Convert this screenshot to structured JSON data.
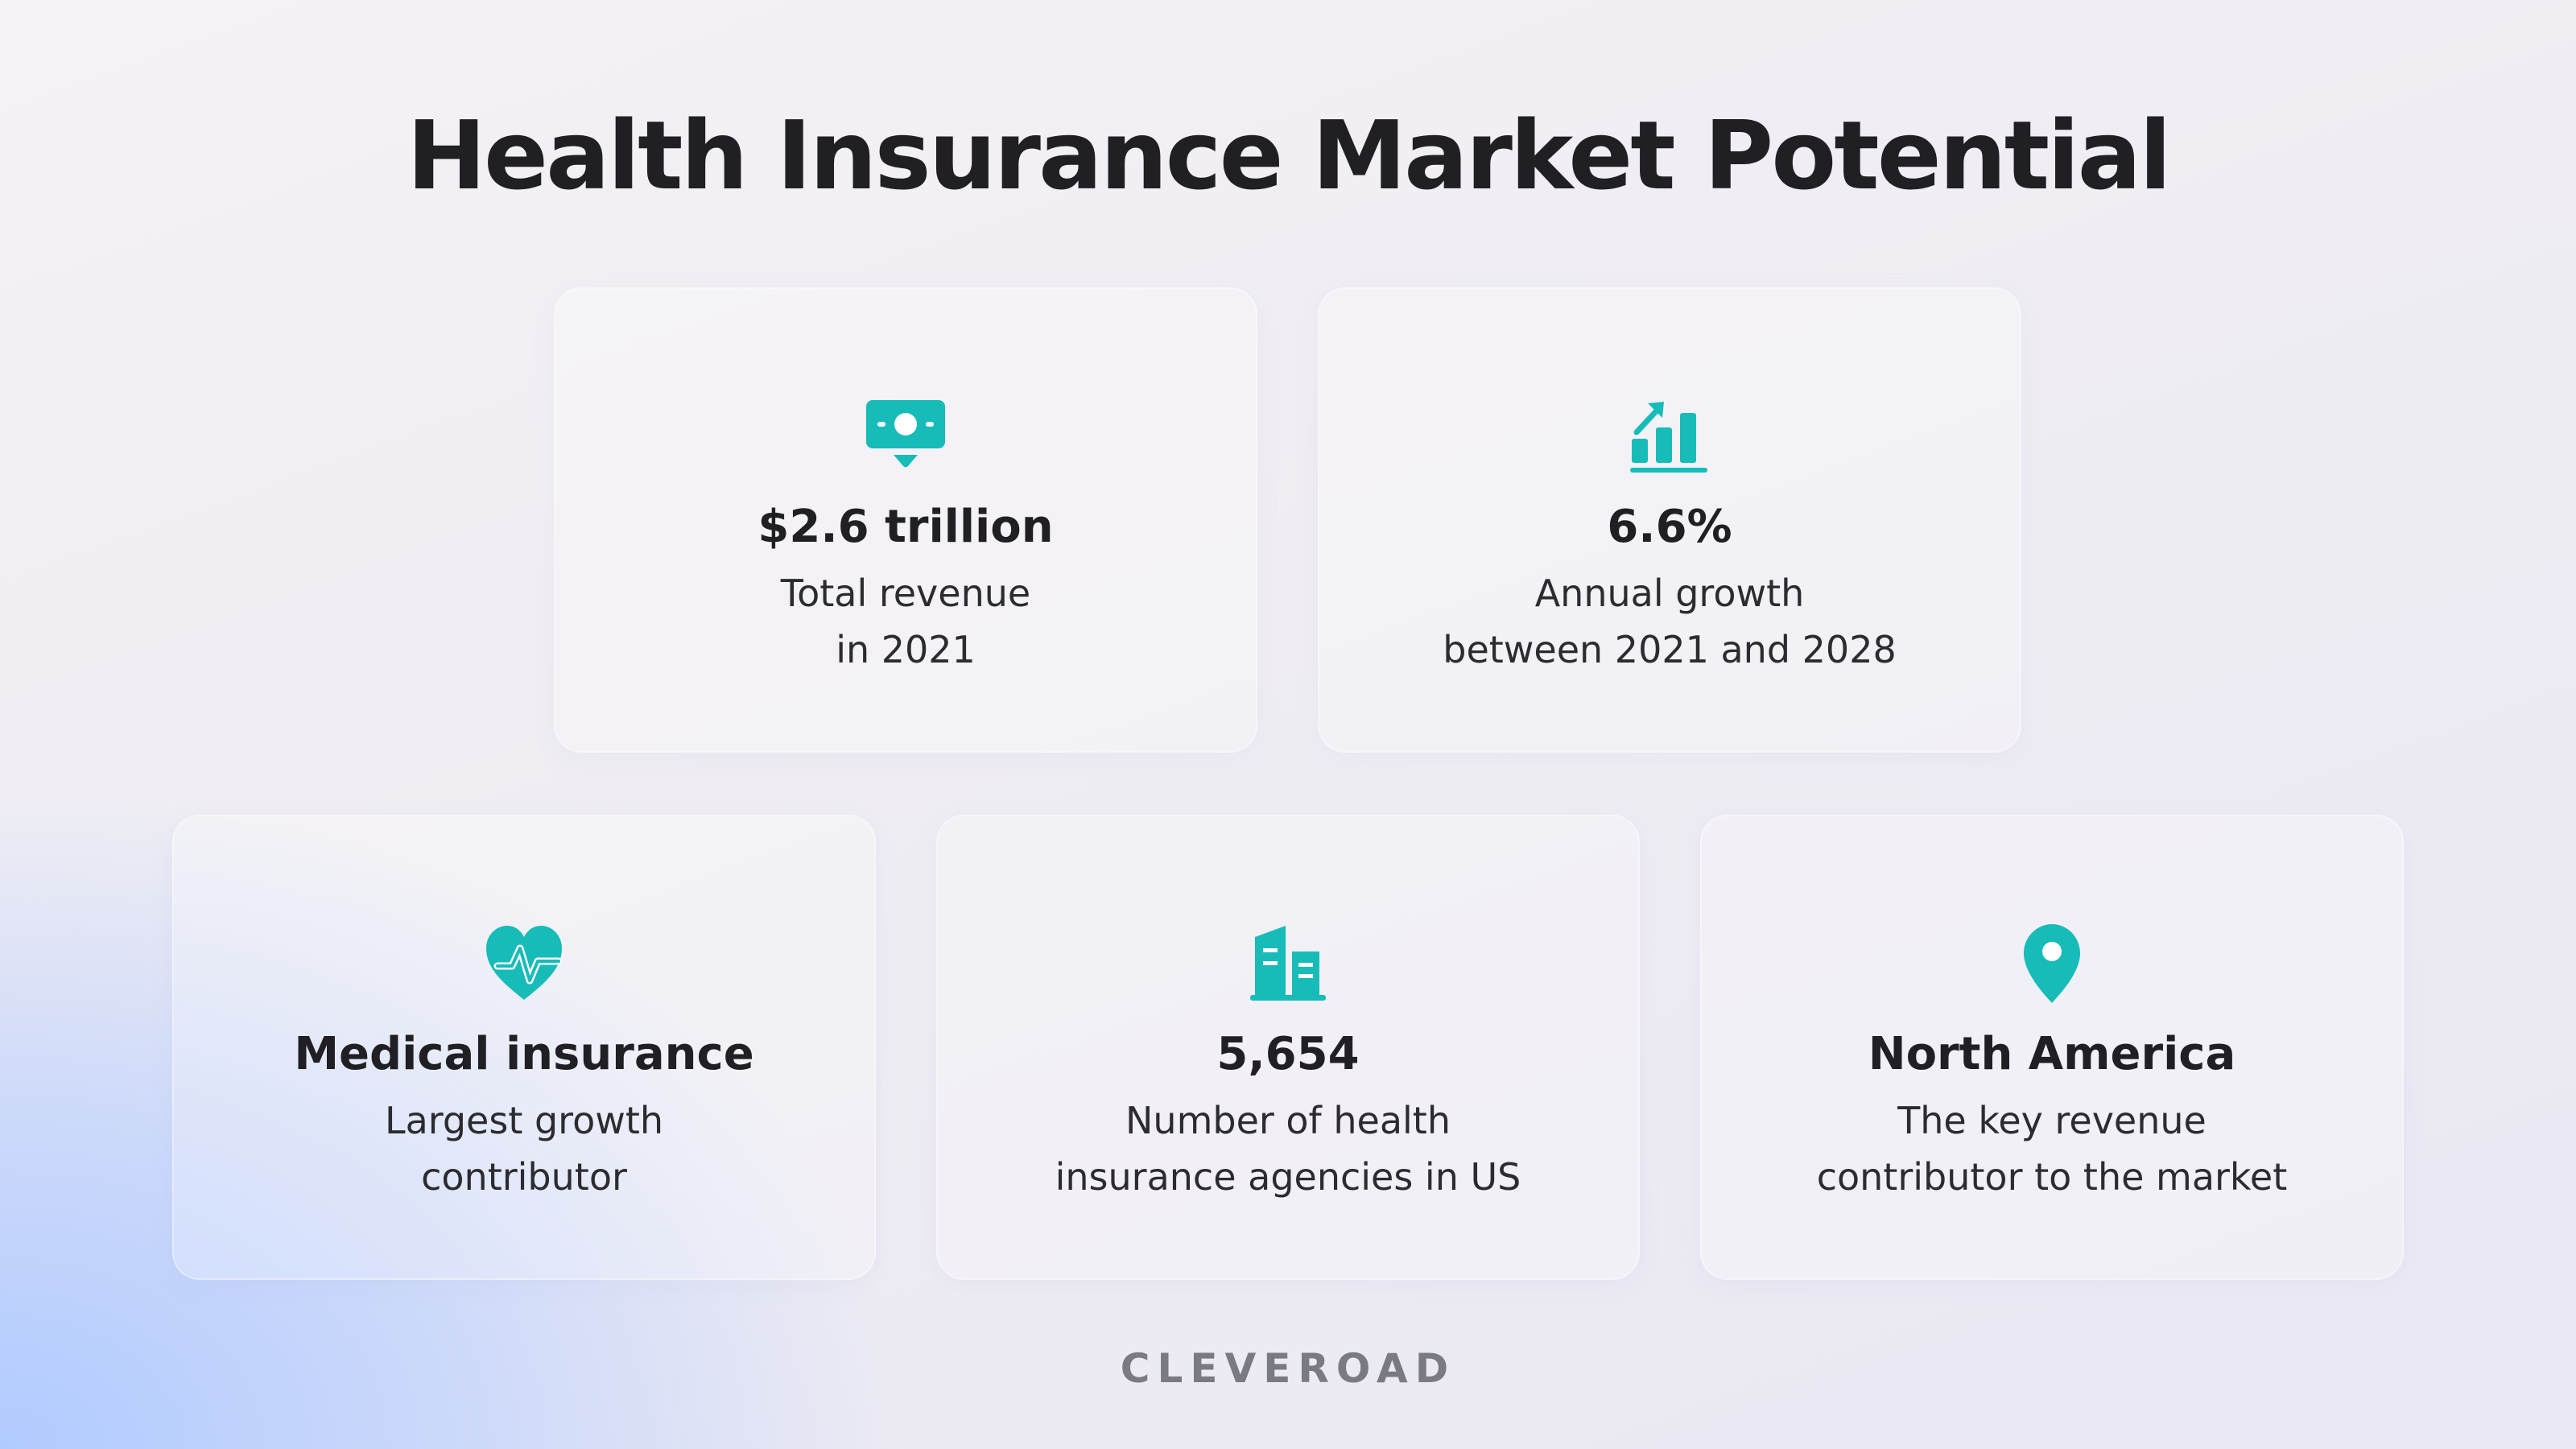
{
  "title": "Health Insurance Market Potential",
  "accent_color": "#17bcb8",
  "cards": [
    {
      "icon": "money-icon",
      "headline": "$2.6 trillion",
      "desc_line1": "Total revenue",
      "desc_line2": "in 2021"
    },
    {
      "icon": "growth-chart-icon",
      "headline": "6.6%",
      "desc_line1": "Annual growth",
      "desc_line2": "between 2021 and 2028"
    },
    {
      "icon": "heart-pulse-icon",
      "headline": "Medical insurance",
      "desc_line1": "Largest growth",
      "desc_line2": "contributor"
    },
    {
      "icon": "buildings-icon",
      "headline": "5,654",
      "desc_line1": "Number of health",
      "desc_line2": "insurance agencies in US"
    },
    {
      "icon": "location-pin-icon",
      "headline": "North America",
      "desc_line1": "The key revenue",
      "desc_line2": "contributor to the market"
    }
  ],
  "logo": "CLEVEROAD"
}
